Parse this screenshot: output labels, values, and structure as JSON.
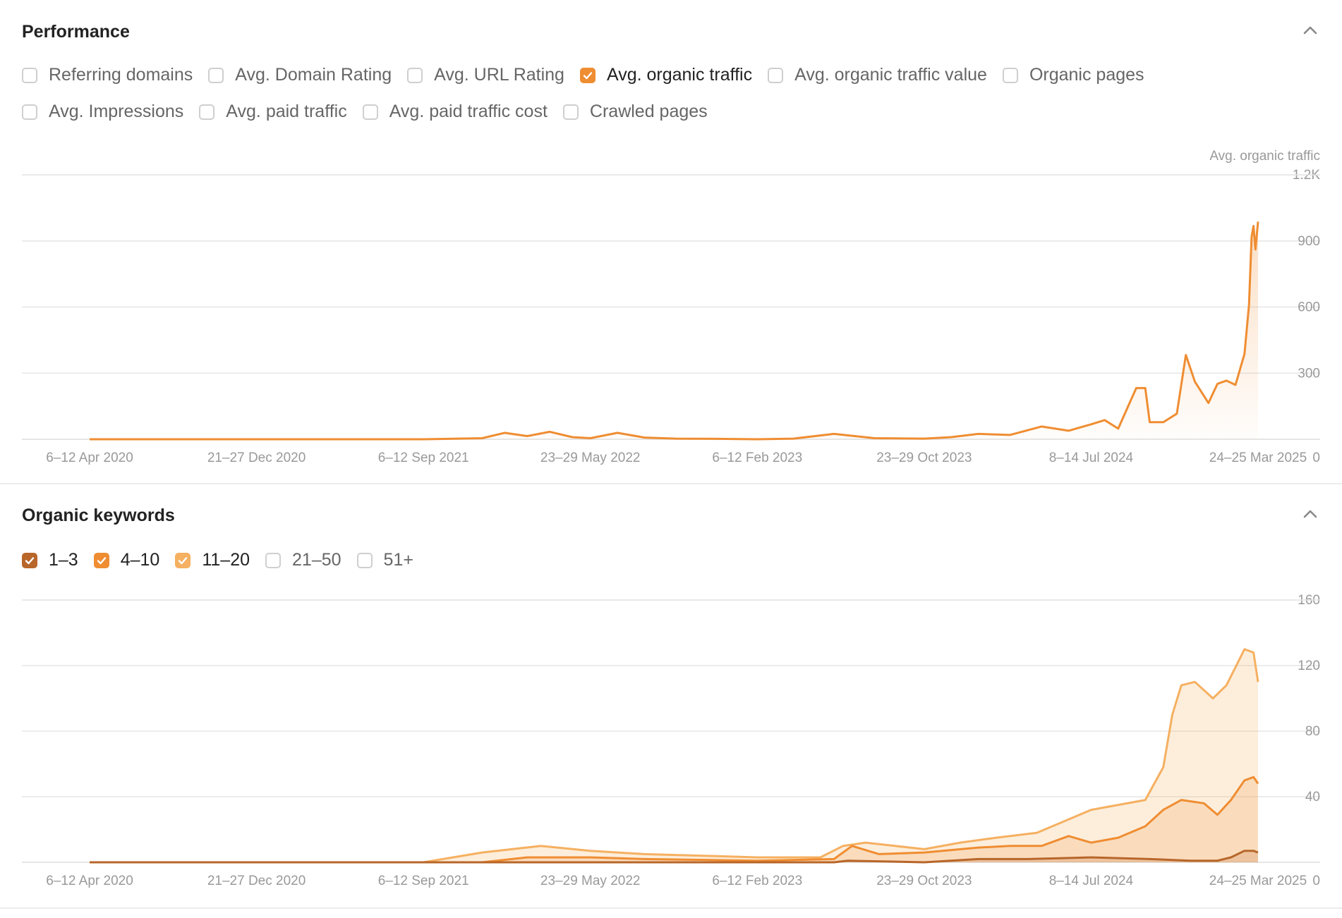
{
  "performance": {
    "title": "Performance",
    "metrics": [
      {
        "label": "Referring domains",
        "checked": false
      },
      {
        "label": "Avg. Domain Rating",
        "checked": false
      },
      {
        "label": "Avg. URL Rating",
        "checked": false
      },
      {
        "label": "Avg. organic traffic",
        "checked": true
      },
      {
        "label": "Avg. organic traffic value",
        "checked": false
      },
      {
        "label": "Organic pages",
        "checked": false
      },
      {
        "label": "Avg. Impressions",
        "checked": false
      },
      {
        "label": "Avg. paid traffic",
        "checked": false
      },
      {
        "label": "Avg. paid traffic cost",
        "checked": false
      },
      {
        "label": "Crawled pages",
        "checked": false
      }
    ]
  },
  "keywords": {
    "title": "Organic keywords",
    "ranges": [
      {
        "label": "1–3",
        "checked": true,
        "color": "#b8662a"
      },
      {
        "label": "4–10",
        "checked": true,
        "color": "#ef8d32"
      },
      {
        "label": "11–20",
        "checked": true,
        "color": "#f5b061"
      },
      {
        "label": "21–50",
        "checked": false
      },
      {
        "label": "51+",
        "checked": false
      }
    ]
  },
  "colors": {
    "accent": "#ef8d32",
    "top3": "#b8662a",
    "pos4_10": "#ef8d32",
    "pos11_20": "#f5b061",
    "grid": "#e6e6e6",
    "tick": "#999999"
  },
  "chart_data": [
    {
      "type": "area",
      "series_label": "Avg. organic traffic",
      "x": [
        "2020-04-06",
        "2020-12-21",
        "2021-09-06",
        "2022-05-23",
        "2023-02-06",
        "2023-10-23",
        "2024-07-08",
        "2024-10-14",
        "2024-11-11",
        "2024-12-09",
        "2025-01-13",
        "2025-02-17",
        "2025-03-24"
      ],
      "x_tick_labels": [
        "6–12 Apr 2020",
        "21–27 Dec 2020",
        "6–12 Sep 2021",
        "23–29 May 2022",
        "6–12 Feb 2023",
        "23–29 Oct 2023",
        "8–14 Jul 2024",
        "24–25 Mar 2025"
      ],
      "points": [
        [
          "2020-04-06",
          0
        ],
        [
          "2021-09-06",
          0
        ],
        [
          "2021-12-06",
          5
        ],
        [
          "2022-01-10",
          30
        ],
        [
          "2022-02-14",
          15
        ],
        [
          "2022-03-21",
          35
        ],
        [
          "2022-04-25",
          10
        ],
        [
          "2022-05-23",
          5
        ],
        [
          "2022-07-04",
          30
        ],
        [
          "2022-08-15",
          8
        ],
        [
          "2022-10-03",
          3
        ],
        [
          "2022-12-05",
          2
        ],
        [
          "2023-02-06",
          0
        ],
        [
          "2023-04-03",
          3
        ],
        [
          "2023-06-05",
          25
        ],
        [
          "2023-08-07",
          5
        ],
        [
          "2023-10-23",
          3
        ],
        [
          "2023-12-04",
          10
        ],
        [
          "2024-01-15",
          25
        ],
        [
          "2024-03-04",
          20
        ],
        [
          "2024-04-22",
          60
        ],
        [
          "2024-06-03",
          40
        ],
        [
          "2024-07-08",
          70
        ],
        [
          "2024-07-29",
          90
        ],
        [
          "2024-08-19",
          50
        ],
        [
          "2024-09-16",
          240
        ],
        [
          "2024-09-30",
          240
        ],
        [
          "2024-10-07",
          80
        ],
        [
          "2024-10-28",
          80
        ],
        [
          "2024-11-18",
          120
        ],
        [
          "2024-12-02",
          395
        ],
        [
          "2024-12-16",
          270
        ],
        [
          "2025-01-06",
          170
        ],
        [
          "2025-01-20",
          260
        ],
        [
          "2025-02-03",
          275
        ],
        [
          "2025-02-17",
          255
        ],
        [
          "2025-03-03",
          400
        ],
        [
          "2025-03-10",
          630
        ],
        [
          "2025-03-14",
          950
        ],
        [
          "2025-03-17",
          1000
        ],
        [
          "2025-03-20",
          890
        ],
        [
          "2025-03-24",
          1020
        ]
      ],
      "y_ticks": [
        "0",
        "300",
        "600",
        "900",
        "1.2K"
      ],
      "ylim": [
        0,
        1200
      ],
      "legend": "top-right",
      "grid": true
    },
    {
      "type": "area",
      "x_tick_labels": [
        "6–12 Apr 2020",
        "21–27 Dec 2020",
        "6–12 Sep 2021",
        "23–29 May 2022",
        "6–12 Feb 2023",
        "23–29 Oct 2023",
        "8–14 Jul 2024",
        "24–25 Mar 2025"
      ],
      "series": [
        {
          "key": "1–3",
          "points": [
            [
              "2020-04-06",
              0
            ],
            [
              "2023-06-05",
              0
            ],
            [
              "2023-06-26",
              1
            ],
            [
              "2023-10-23",
              0
            ],
            [
              "2024-01-15",
              2
            ],
            [
              "2024-04-01",
              2
            ],
            [
              "2024-07-08",
              3
            ],
            [
              "2024-10-07",
              2
            ],
            [
              "2024-12-09",
              1
            ],
            [
              "2025-01-20",
              1
            ],
            [
              "2025-02-10",
              3
            ],
            [
              "2025-03-03",
              7
            ],
            [
              "2025-03-17",
              7
            ],
            [
              "2025-03-24",
              6
            ]
          ]
        },
        {
          "key": "4–10",
          "points": [
            [
              "2020-04-06",
              0
            ],
            [
              "2021-12-06",
              0
            ],
            [
              "2022-02-14",
              3
            ],
            [
              "2022-05-23",
              3
            ],
            [
              "2022-08-15",
              2
            ],
            [
              "2023-02-06",
              1
            ],
            [
              "2023-06-05",
              2
            ],
            [
              "2023-07-03",
              10
            ],
            [
              "2023-08-14",
              5
            ],
            [
              "2023-10-23",
              6
            ],
            [
              "2024-01-15",
              9
            ],
            [
              "2024-03-04",
              10
            ],
            [
              "2024-04-22",
              10
            ],
            [
              "2024-06-03",
              16
            ],
            [
              "2024-07-08",
              12
            ],
            [
              "2024-08-19",
              15
            ],
            [
              "2024-09-30",
              22
            ],
            [
              "2024-10-28",
              32
            ],
            [
              "2024-11-25",
              38
            ],
            [
              "2024-12-30",
              36
            ],
            [
              "2025-01-20",
              29
            ],
            [
              "2025-02-10",
              38
            ],
            [
              "2025-03-03",
              50
            ],
            [
              "2025-03-17",
              52
            ],
            [
              "2025-03-24",
              48
            ]
          ]
        },
        {
          "key": "11–20",
          "points": [
            [
              "2020-04-06",
              0
            ],
            [
              "2021-09-06",
              0
            ],
            [
              "2021-12-06",
              6
            ],
            [
              "2022-03-07",
              10
            ],
            [
              "2022-05-23",
              7
            ],
            [
              "2022-08-15",
              5
            ],
            [
              "2022-11-14",
              4
            ],
            [
              "2023-02-06",
              3
            ],
            [
              "2023-05-15",
              3
            ],
            [
              "2023-06-19",
              10
            ],
            [
              "2023-07-24",
              12
            ],
            [
              "2023-10-23",
              8
            ],
            [
              "2023-12-18",
              12
            ],
            [
              "2024-02-12",
              15
            ],
            [
              "2024-04-15",
              18
            ],
            [
              "2024-05-27",
              25
            ],
            [
              "2024-07-08",
              32
            ],
            [
              "2024-08-19",
              35
            ],
            [
              "2024-09-30",
              38
            ],
            [
              "2024-10-28",
              58
            ],
            [
              "2024-11-11",
              90
            ],
            [
              "2024-11-25",
              108
            ],
            [
              "2024-12-16",
              110
            ],
            [
              "2025-01-13",
              100
            ],
            [
              "2025-02-03",
              108
            ],
            [
              "2025-03-03",
              130
            ],
            [
              "2025-03-17",
              128
            ],
            [
              "2025-03-24",
              110
            ]
          ]
        }
      ],
      "y_ticks": [
        "0",
        "40",
        "80",
        "120",
        "160"
      ],
      "ylim": [
        0,
        160
      ],
      "grid": true
    }
  ]
}
